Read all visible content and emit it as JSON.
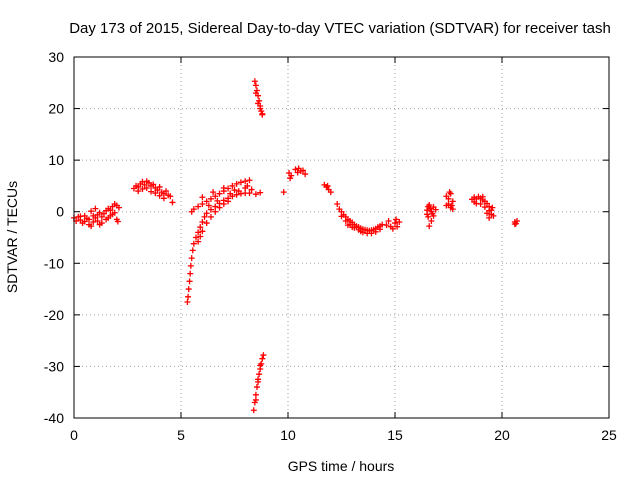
{
  "chart_data": {
    "type": "scatter",
    "title": "Day 173 of 2015, Sidereal Day-to-day VTEC variation (SDTVAR) for receiver tash",
    "xlabel": "GPS time / hours",
    "ylabel": "SDTVAR / TECUs",
    "xlim": [
      0,
      25
    ],
    "ylim": [
      -40,
      30
    ],
    "xticks": [
      "0",
      "5",
      "10",
      "15",
      "20",
      "25"
    ],
    "yticks": [
      "-40",
      "-30",
      "-20",
      "-10",
      "0",
      "10",
      "20",
      "30"
    ],
    "grid": true,
    "marker": "plus",
    "colors": {
      "points": "#ff0000",
      "axis": "#000000",
      "grid": "#a0a0a0"
    },
    "series": [
      {
        "name": "seg1",
        "points": [
          [
            0.0,
            -1.2
          ],
          [
            0.1,
            -1.8
          ],
          [
            0.2,
            -1.0
          ],
          [
            0.3,
            -1.6
          ],
          [
            0.4,
            -2.2
          ],
          [
            0.5,
            -1.9
          ],
          [
            0.6,
            -1.3
          ],
          [
            0.7,
            -2.5
          ],
          [
            0.8,
            -2.8
          ],
          [
            0.9,
            -2.0
          ],
          [
            1.0,
            -1.2
          ],
          [
            1.1,
            -0.6
          ],
          [
            1.2,
            -0.2
          ],
          [
            1.3,
            -1.0
          ],
          [
            1.4,
            -0.4
          ],
          [
            1.5,
            0.2
          ],
          [
            1.6,
            0.6
          ],
          [
            1.7,
            0.3
          ],
          [
            1.8,
            1.0
          ],
          [
            1.9,
            1.5
          ],
          [
            2.0,
            1.2
          ],
          [
            2.1,
            0.8
          ],
          [
            0.5,
            -0.8
          ],
          [
            0.7,
            -1.5
          ],
          [
            0.9,
            -0.8
          ],
          [
            1.1,
            -1.8
          ],
          [
            1.3,
            -2.2
          ],
          [
            1.5,
            -1.5
          ],
          [
            1.7,
            -0.8
          ],
          [
            1.9,
            -0.2
          ],
          [
            2.0,
            -1.5
          ],
          [
            0.3,
            -0.9
          ],
          [
            0.8,
            0.1
          ],
          [
            1.0,
            0.6
          ],
          [
            1.2,
            -2.5
          ],
          [
            1.6,
            -1.2
          ],
          [
            1.8,
            -0.5
          ],
          [
            2.05,
            -1.9
          ]
        ]
      },
      {
        "name": "seg2",
        "points": [
          [
            2.8,
            4.5
          ],
          [
            2.9,
            5.0
          ],
          [
            3.0,
            4.8
          ],
          [
            3.1,
            5.4
          ],
          [
            3.2,
            5.8
          ],
          [
            3.3,
            5.2
          ],
          [
            3.4,
            5.9
          ],
          [
            3.5,
            5.6
          ],
          [
            3.6,
            5.0
          ],
          [
            3.7,
            5.3
          ],
          [
            3.8,
            4.6
          ],
          [
            3.9,
            4.2
          ],
          [
            4.0,
            4.8
          ],
          [
            4.1,
            3.8
          ],
          [
            4.2,
            3.5
          ],
          [
            4.3,
            4.0
          ],
          [
            4.4,
            3.2
          ],
          [
            4.5,
            3.0
          ],
          [
            3.2,
            4.4
          ],
          [
            3.4,
            4.6
          ],
          [
            3.6,
            3.9
          ],
          [
            3.8,
            3.6
          ],
          [
            4.0,
            3.1
          ],
          [
            4.2,
            2.6
          ],
          [
            3.0,
            4.0
          ],
          [
            4.6,
            1.8
          ]
        ]
      },
      {
        "name": "seg3",
        "points": [
          [
            5.3,
            -17.5
          ],
          [
            5.33,
            -16.5
          ],
          [
            5.36,
            -15
          ],
          [
            5.4,
            -13.5
          ],
          [
            5.43,
            -12
          ],
          [
            5.46,
            -10.5
          ],
          [
            5.5,
            -9
          ],
          [
            5.55,
            -7.5
          ],
          [
            5.6,
            -6.2
          ],
          [
            5.7,
            -5
          ],
          [
            5.8,
            -4
          ],
          [
            5.9,
            -3
          ],
          [
            6.0,
            -2
          ],
          [
            6.1,
            -1
          ],
          [
            6.2,
            -0.3
          ],
          [
            6.4,
            0.4
          ],
          [
            6.6,
            1.0
          ],
          [
            6.8,
            1.6
          ],
          [
            7.0,
            2.2
          ],
          [
            7.2,
            2.6
          ],
          [
            7.4,
            3.0
          ],
          [
            7.6,
            3.3
          ],
          [
            7.8,
            3.5
          ],
          [
            8.0,
            3.6
          ],
          [
            8.2,
            3.6
          ],
          [
            8.5,
            3.4
          ],
          [
            8.7,
            3.7
          ],
          [
            5.8,
            -5.8
          ],
          [
            5.9,
            -4.8
          ],
          [
            6.0,
            -3.8
          ],
          [
            6.2,
            -2.2
          ],
          [
            6.4,
            -1.0
          ],
          [
            6.6,
            0.0
          ],
          [
            6.8,
            0.8
          ],
          [
            7.0,
            1.5
          ],
          [
            7.2,
            2.0
          ],
          [
            5.6,
            0.5
          ],
          [
            5.8,
            1.0
          ],
          [
            6.0,
            1.5
          ],
          [
            6.2,
            2.0
          ],
          [
            6.4,
            2.5
          ],
          [
            6.6,
            3.0
          ],
          [
            6.8,
            3.5
          ],
          [
            7.0,
            4.0
          ],
          [
            7.2,
            4.5
          ],
          [
            7.4,
            5.0
          ],
          [
            7.6,
            5.4
          ],
          [
            7.8,
            5.7
          ],
          [
            8.0,
            5.9
          ],
          [
            8.2,
            6.1
          ],
          [
            5.5,
            0.0
          ],
          [
            6.0,
            2.8
          ],
          [
            6.5,
            3.8
          ],
          [
            7.0,
            4.6
          ],
          [
            7.5,
            4.2
          ],
          [
            8.0,
            4.6
          ],
          [
            6.3,
            1.2
          ],
          [
            6.7,
            2.1
          ],
          [
            7.3,
            3.5
          ],
          [
            7.7,
            4.0
          ],
          [
            8.1,
            5.0
          ],
          [
            8.3,
            4.3
          ]
        ]
      },
      {
        "name": "seg4",
        "points": [
          [
            8.45,
            25.3
          ],
          [
            8.5,
            24.5
          ],
          [
            8.55,
            23.5
          ],
          [
            8.6,
            22.5
          ],
          [
            8.65,
            21.5
          ],
          [
            8.7,
            20.5
          ],
          [
            8.75,
            19.5
          ],
          [
            8.8,
            19.0
          ],
          [
            8.5,
            23.0
          ],
          [
            8.6,
            21.0
          ],
          [
            8.7,
            20.0
          ],
          [
            8.8,
            18.8
          ]
        ]
      },
      {
        "name": "seg5",
        "points": [
          [
            8.4,
            -38.5
          ],
          [
            8.45,
            -37
          ],
          [
            8.5,
            -35.5
          ],
          [
            8.55,
            -34
          ],
          [
            8.6,
            -33
          ],
          [
            8.65,
            -31.5
          ],
          [
            8.7,
            -30.5
          ],
          [
            8.75,
            -29.5
          ],
          [
            8.8,
            -28.5
          ],
          [
            8.85,
            -27.8
          ],
          [
            8.5,
            -36.5
          ],
          [
            8.6,
            -32.5
          ],
          [
            8.7,
            -29.8
          ]
        ]
      },
      {
        "name": "seg6",
        "points": [
          [
            9.8,
            3.8
          ],
          [
            10.05,
            7.5
          ],
          [
            10.1,
            6.5
          ],
          [
            10.15,
            7.0
          ],
          [
            10.35,
            8.2
          ],
          [
            10.45,
            7.6
          ],
          [
            10.5,
            8.4
          ],
          [
            10.6,
            7.9
          ],
          [
            10.7,
            8.0
          ],
          [
            10.8,
            7.3
          ]
        ]
      },
      {
        "name": "seg7",
        "points": [
          [
            11.7,
            5.2
          ],
          [
            11.8,
            4.8
          ],
          [
            11.9,
            4.3
          ],
          [
            12.0,
            3.8
          ],
          [
            11.85,
            5.0
          ],
          [
            12.3,
            1.5
          ],
          [
            12.4,
            0.5
          ],
          [
            12.5,
            0.0
          ],
          [
            12.6,
            -0.6
          ],
          [
            12.7,
            -1.0
          ],
          [
            12.8,
            -1.5
          ],
          [
            12.9,
            -1.8
          ],
          [
            13.0,
            -2.1
          ],
          [
            13.1,
            -2.5
          ],
          [
            13.2,
            -2.8
          ],
          [
            13.3,
            -3.0
          ],
          [
            13.4,
            -3.2
          ],
          [
            13.5,
            -3.4
          ],
          [
            13.6,
            -3.5
          ],
          [
            13.7,
            -3.6
          ],
          [
            13.8,
            -3.7
          ],
          [
            13.9,
            -3.6
          ],
          [
            14.0,
            -3.5
          ],
          [
            14.1,
            -3.3
          ],
          [
            14.2,
            -3.0
          ],
          [
            14.3,
            -2.8
          ],
          [
            14.4,
            -2.5
          ],
          [
            12.5,
            -0.9
          ],
          [
            12.7,
            -1.8
          ],
          [
            12.9,
            -2.5
          ],
          [
            13.1,
            -3.1
          ],
          [
            13.3,
            -3.5
          ],
          [
            13.5,
            -4.0
          ],
          [
            13.7,
            -4.2
          ],
          [
            13.9,
            -4.2
          ],
          [
            14.1,
            -3.9
          ],
          [
            14.3,
            -3.4
          ],
          [
            12.8,
            -2.6
          ],
          [
            13.0,
            -3.0
          ],
          [
            13.4,
            -3.8
          ],
          [
            14.6,
            -2.6
          ],
          [
            14.8,
            -2.9
          ],
          [
            15.0,
            -2.2
          ],
          [
            15.1,
            -2.9
          ],
          [
            15.2,
            -2.0
          ],
          [
            14.7,
            -1.8
          ],
          [
            14.9,
            -3.3
          ],
          [
            15.05,
            -1.5
          ]
        ]
      },
      {
        "name": "seg8",
        "points": [
          [
            16.5,
            0.3
          ],
          [
            16.55,
            1.0
          ],
          [
            16.6,
            1.3
          ],
          [
            16.65,
            0.6
          ],
          [
            16.7,
            0.0
          ],
          [
            16.75,
            -0.4
          ],
          [
            16.8,
            -0.8
          ],
          [
            16.55,
            -1.0
          ],
          [
            16.6,
            -2.8
          ],
          [
            16.7,
            -1.8
          ],
          [
            16.8,
            0.9
          ],
          [
            16.9,
            0.4
          ],
          [
            16.5,
            -0.5
          ]
        ]
      },
      {
        "name": "seg9",
        "points": [
          [
            17.4,
            3.0
          ],
          [
            17.5,
            2.5
          ],
          [
            17.6,
            3.5
          ],
          [
            17.7,
            2.0
          ],
          [
            17.5,
            1.5
          ],
          [
            17.6,
            0.8
          ],
          [
            17.7,
            0.5
          ],
          [
            17.4,
            1.2
          ],
          [
            17.55,
            3.8
          ],
          [
            17.65,
            1.2
          ]
        ]
      },
      {
        "name": "seg10",
        "points": [
          [
            18.6,
            2.4
          ],
          [
            18.7,
            2.8
          ],
          [
            18.8,
            2.5
          ],
          [
            18.9,
            2.9
          ],
          [
            19.0,
            2.6
          ],
          [
            19.1,
            2.3
          ],
          [
            19.2,
            2.0
          ],
          [
            19.3,
            1.6
          ],
          [
            19.4,
            1.0
          ],
          [
            19.5,
            0.3
          ],
          [
            19.5,
            -0.5
          ],
          [
            19.4,
            -1.2
          ],
          [
            18.8,
            1.6
          ],
          [
            19.0,
            1.5
          ],
          [
            19.2,
            0.9
          ],
          [
            19.4,
            0.2
          ],
          [
            19.3,
            -0.3
          ],
          [
            19.6,
            -0.8
          ],
          [
            18.7,
            1.9
          ],
          [
            19.55,
            0.8
          ],
          [
            19.1,
            2.9
          ]
        ]
      },
      {
        "name": "seg11",
        "points": [
          [
            20.6,
            -2.0
          ],
          [
            20.65,
            -2.3
          ],
          [
            20.7,
            -1.8
          ],
          [
            20.6,
            -2.4
          ]
        ]
      }
    ]
  }
}
